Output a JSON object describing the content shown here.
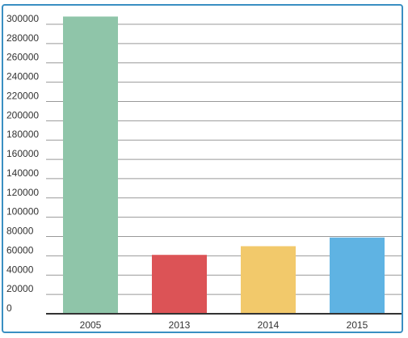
{
  "chart_data": {
    "type": "bar",
    "title": "",
    "xlabel": "",
    "ylabel": "",
    "categories": [
      "2005",
      "2013",
      "2014",
      "2015"
    ],
    "values": [
      308000,
      61000,
      70000,
      79000
    ],
    "colors": [
      "#8fc5a9",
      "#dc5356",
      "#f2c96b",
      "#5fb3e3"
    ],
    "ylim": [
      0,
      300000
    ],
    "yticks": [
      0,
      20000,
      40000,
      60000,
      80000,
      100000,
      120000,
      140000,
      160000,
      180000,
      200000,
      220000,
      240000,
      260000,
      280000,
      300000
    ],
    "grid": true,
    "legend": "none"
  },
  "colors": {
    "frame_border": "#3a8fc2",
    "grid": "#999999",
    "axis": "#333333"
  }
}
